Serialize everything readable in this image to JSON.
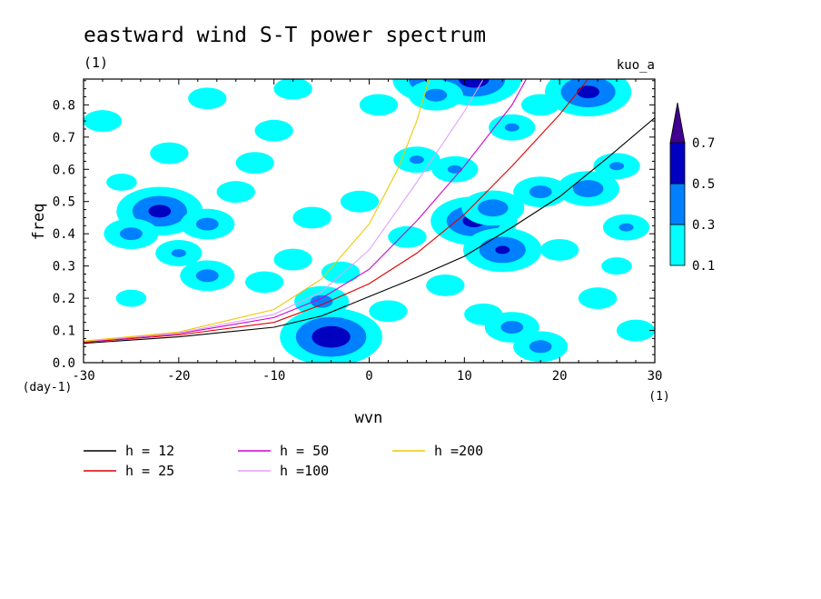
{
  "chart_data": {
    "type": "heatmap",
    "title": "eastward wind S-T power spectrum",
    "subtitle": "(1)",
    "run_label": "kuo_a",
    "xlabel": "wvn",
    "x_unit": "(1)",
    "ylabel": "freq",
    "y_unit": "(day-1)",
    "xlim": [
      -30,
      30
    ],
    "ylim": [
      0,
      0.88
    ],
    "x_ticks": [
      -30,
      -20,
      -10,
      0,
      10,
      20,
      30
    ],
    "x_tick_labels": [
      "-30",
      "-20",
      "-10",
      "0",
      "10",
      "20",
      "30"
    ],
    "y_ticks": [
      0,
      0.1,
      0.2,
      0.3,
      0.4,
      0.5,
      0.6,
      0.7,
      0.8
    ],
    "y_tick_labels": [
      "0.0",
      "0.1",
      "0.2",
      "0.3",
      "0.4",
      "0.5",
      "0.6",
      "0.7",
      "0.8"
    ],
    "colorbar": {
      "levels": [
        0.1,
        0.3,
        0.5,
        0.7
      ],
      "level_labels": [
        "0.1",
        "0.3",
        "0.5",
        "0.7"
      ],
      "colors": [
        "#00ffff",
        "#0080ff",
        "#0000c0",
        "#400090"
      ]
    },
    "dispersion_curves": [
      {
        "name": "h = 12",
        "h": 12,
        "color": "#000000",
        "x": [
          -30,
          -20,
          -10,
          -5,
          0,
          5,
          10,
          15,
          20,
          25,
          30
        ],
        "y": [
          0.06,
          0.08,
          0.11,
          0.145,
          0.205,
          0.265,
          0.33,
          0.42,
          0.515,
          0.635,
          0.76
        ]
      },
      {
        "name": "h = 25",
        "h": 25,
        "color": "#e00000",
        "x": [
          -30,
          -20,
          -10,
          -5,
          0,
          5,
          10,
          15,
          20,
          23
        ],
        "y": [
          0.063,
          0.086,
          0.125,
          0.18,
          0.245,
          0.34,
          0.46,
          0.61,
          0.77,
          0.88
        ]
      },
      {
        "name": "h = 50",
        "h": 50,
        "color": "#d000d0",
        "x": [
          -30,
          -20,
          -10,
          -5,
          0,
          5,
          10,
          15,
          16.5
        ],
        "y": [
          0.065,
          0.09,
          0.14,
          0.2,
          0.29,
          0.44,
          0.61,
          0.8,
          0.88
        ]
      },
      {
        "name": "h =100",
        "h": 100,
        "color": "#e0a0ff",
        "x": [
          -30,
          -20,
          -10,
          -5,
          0,
          5,
          7.5,
          10,
          12
        ],
        "y": [
          0.066,
          0.092,
          0.15,
          0.22,
          0.35,
          0.56,
          0.67,
          0.78,
          0.88
        ]
      },
      {
        "name": "h =200",
        "h": 200,
        "color": "#f0c800",
        "x": [
          -30,
          -20,
          -10,
          -5,
          0,
          3,
          5,
          6.3
        ],
        "y": [
          0.067,
          0.095,
          0.165,
          0.26,
          0.43,
          0.6,
          0.75,
          0.88
        ]
      }
    ],
    "legend_placement": "bottom",
    "blobs": [
      {
        "x": -26,
        "y": 0.56,
        "v": 0.2
      },
      {
        "x": -22,
        "y": 0.47,
        "v": 0.55
      },
      {
        "x": -17,
        "y": 0.43,
        "v": 0.35
      },
      {
        "x": -25,
        "y": 0.4,
        "v": 0.35
      },
      {
        "x": -20,
        "y": 0.34,
        "v": 0.3
      },
      {
        "x": -17,
        "y": 0.27,
        "v": 0.35
      },
      {
        "x": -4,
        "y": 0.08,
        "v": 0.65
      },
      {
        "x": -5,
        "y": 0.19,
        "v": 0.35
      },
      {
        "x": 7,
        "y": 0.88,
        "v": 0.55
      },
      {
        "x": 11,
        "y": 0.88,
        "v": 0.6
      },
      {
        "x": 23,
        "y": 0.84,
        "v": 0.55
      },
      {
        "x": 7,
        "y": 0.83,
        "v": 0.35
      },
      {
        "x": 11,
        "y": 0.44,
        "v": 0.55
      },
      {
        "x": 14,
        "y": 0.35,
        "v": 0.5
      },
      {
        "x": 13,
        "y": 0.48,
        "v": 0.4
      },
      {
        "x": 18,
        "y": 0.53,
        "v": 0.35
      },
      {
        "x": 23,
        "y": 0.54,
        "v": 0.4
      },
      {
        "x": 18,
        "y": 0.05,
        "v": 0.35
      },
      {
        "x": 15,
        "y": 0.11,
        "v": 0.35
      },
      {
        "x": 26,
        "y": 0.61,
        "v": 0.3
      },
      {
        "x": 27,
        "y": 0.42,
        "v": 0.3
      },
      {
        "x": -1,
        "y": 0.5,
        "v": 0.25
      },
      {
        "x": -12,
        "y": 0.62,
        "v": 0.25
      },
      {
        "x": -8,
        "y": 0.32,
        "v": 0.25
      },
      {
        "x": 5,
        "y": 0.63,
        "v": 0.3
      },
      {
        "x": 1,
        "y": 0.8,
        "v": 0.25
      },
      {
        "x": -17,
        "y": 0.82,
        "v": 0.25
      },
      {
        "x": -10,
        "y": 0.72,
        "v": 0.25
      },
      {
        "x": 24,
        "y": 0.2,
        "v": 0.25
      },
      {
        "x": 8,
        "y": 0.24,
        "v": 0.25
      },
      {
        "x": -28,
        "y": 0.75,
        "v": 0.25
      },
      {
        "x": -3,
        "y": 0.28,
        "v": 0.25
      },
      {
        "x": 15,
        "y": 0.73,
        "v": 0.3
      },
      {
        "x": 20,
        "y": 0.35,
        "v": 0.25
      },
      {
        "x": -14,
        "y": 0.53,
        "v": 0.25
      },
      {
        "x": 28,
        "y": 0.1,
        "v": 0.25
      },
      {
        "x": -6,
        "y": 0.45,
        "v": 0.25
      },
      {
        "x": 4,
        "y": 0.39,
        "v": 0.25
      },
      {
        "x": 18,
        "y": 0.8,
        "v": 0.25
      },
      {
        "x": -21,
        "y": 0.65,
        "v": 0.25
      },
      {
        "x": -25,
        "y": 0.2,
        "v": 0.2
      },
      {
        "x": 26,
        "y": 0.3,
        "v": 0.2
      },
      {
        "x": 2,
        "y": 0.16,
        "v": 0.25
      },
      {
        "x": 12,
        "y": 0.15,
        "v": 0.25
      },
      {
        "x": -11,
        "y": 0.25,
        "v": 0.25
      },
      {
        "x": 9,
        "y": 0.6,
        "v": 0.3
      },
      {
        "x": -8,
        "y": 0.85,
        "v": 0.25
      }
    ]
  }
}
